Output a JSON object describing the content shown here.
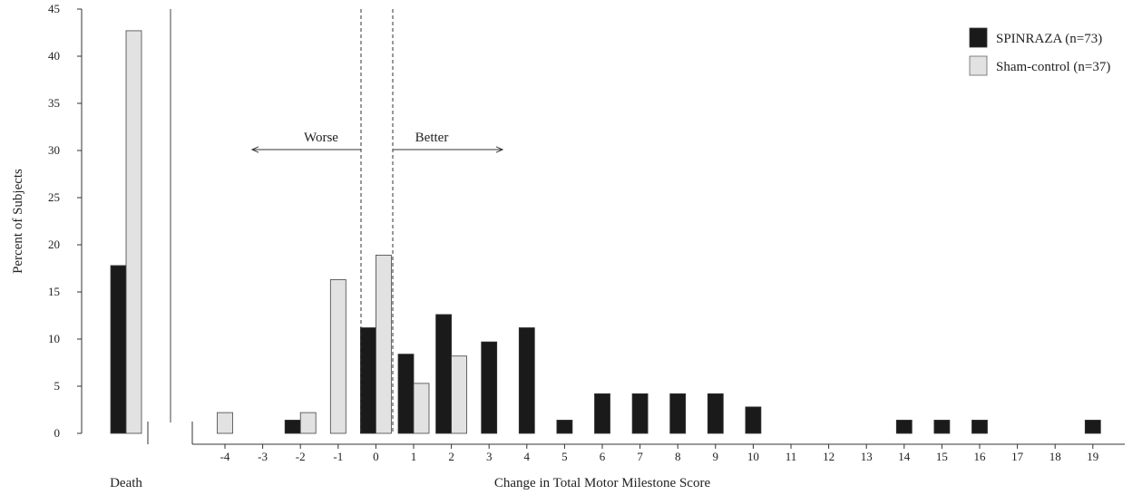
{
  "chart_data": {
    "type": "bar",
    "ylabel": "Percent of Subjects",
    "xlabel": "Change in Total Motor Milestone Score",
    "ylim": [
      0,
      45
    ],
    "yticks": [
      "0",
      "5",
      "10",
      "15",
      "20",
      "25",
      "30",
      "35",
      "40",
      "45"
    ],
    "grid": false,
    "legend_position": "top-right",
    "death_panel": {
      "label": "Death",
      "values": {
        "SPINRAZA": 17.8,
        "Sham-control": 42.7
      }
    },
    "categories": [
      "-4",
      "-3",
      "-2",
      "-1",
      "0",
      "1",
      "2",
      "3",
      "4",
      "5",
      "6",
      "7",
      "8",
      "9",
      "10",
      "11",
      "12",
      "13",
      "14",
      "15",
      "16",
      "17",
      "18",
      "19"
    ],
    "series": [
      {
        "name": "SPINRAZA (n=73)",
        "color": "#1a1a1a",
        "values": [
          0,
          0,
          1.4,
          0,
          11.2,
          8.4,
          12.6,
          9.7,
          11.2,
          1.4,
          4.2,
          4.2,
          4.2,
          4.2,
          2.8,
          0,
          0,
          0,
          1.4,
          1.4,
          1.4,
          0,
          0,
          1.4
        ]
      },
      {
        "name": "Sham-control (n=37)",
        "color": "#e2e2e2",
        "values": [
          2.2,
          0,
          2.2,
          16.3,
          18.9,
          5.3,
          8.2,
          0,
          0,
          0,
          0,
          0,
          0,
          0,
          0,
          0,
          0,
          0,
          0,
          0,
          0,
          0,
          0,
          0
        ]
      }
    ],
    "annotations": {
      "worse": "Worse",
      "better": "Better"
    }
  }
}
